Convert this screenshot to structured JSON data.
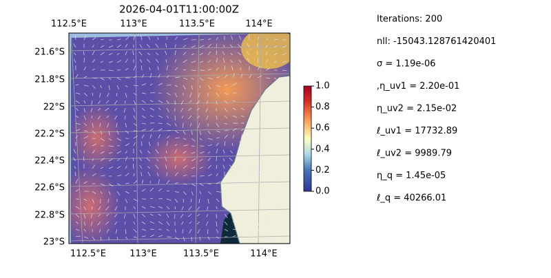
{
  "title": "2026-04-01T11:00:00Z",
  "map": {
    "top_lon_labels": [
      "112.5°E",
      "113°E",
      "113.5°E",
      "114°E"
    ],
    "bottom_lon_labels": [
      "112.5°E",
      "113°E",
      "113.5°E",
      "114°E"
    ],
    "lat_labels": [
      "21.6°S",
      "21.8°S",
      "22°S",
      "22.2°S",
      "22.4°S",
      "22.6°S",
      "22.8°S",
      "23°S"
    ]
  },
  "colorbar": {
    "lim": [
      0,
      1
    ],
    "ticks": [
      {
        "value": 0,
        "label": "0.0"
      },
      {
        "value": 0.2,
        "label": "0.2"
      },
      {
        "value": 0.4,
        "label": "0.4"
      },
      {
        "value": 0.6,
        "label": "0.6"
      },
      {
        "value": 0.8,
        "label": "0.8"
      },
      {
        "value": 1,
        "label": "1.0"
      }
    ]
  },
  "info": [
    "Iterations: 200",
    "nll: -15043.128761420401",
    "σ = 1.19e-06",
    ",η_uv1 = 2.20e-01",
    "η_uv2 = 2.15e-02",
    "ℓ_uv1 = 17732.89",
    "ℓ_uv2 = 9989.79",
    "η_q = 1.45e-05",
    "ℓ_q = 40266.01"
  ]
}
